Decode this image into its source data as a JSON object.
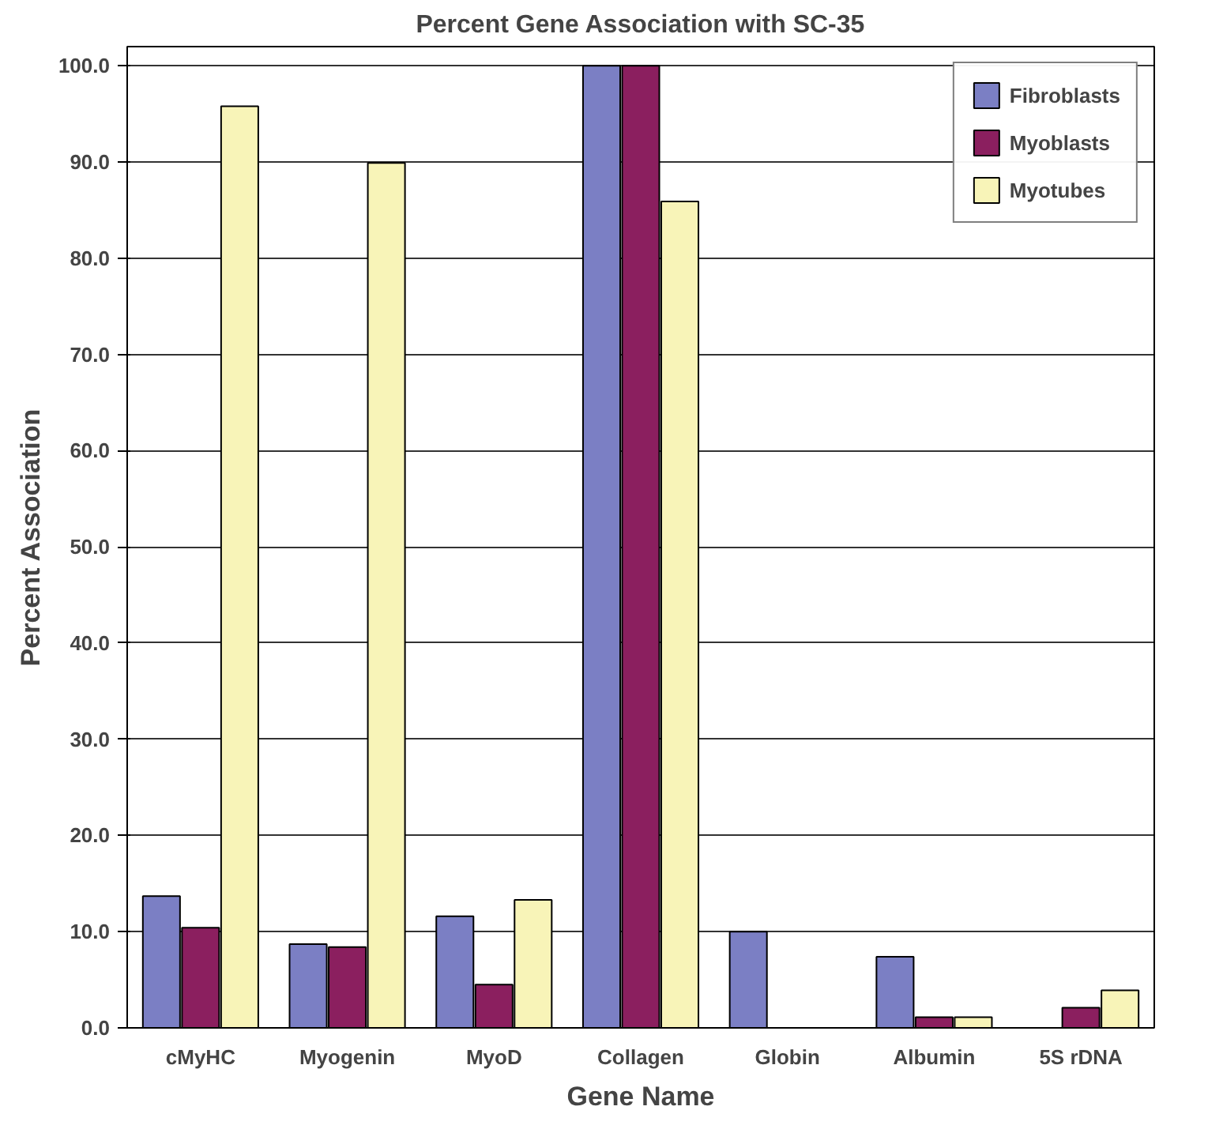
{
  "chart_data": {
    "type": "bar",
    "title": "Percent Gene Association with SC-35",
    "xlabel": "Gene Name",
    "ylabel": "Percent Association",
    "categories": [
      "cMyHC",
      "Myogenin",
      "MyoD",
      "Collagen",
      "Globin",
      "Albumin",
      "5S rDNA"
    ],
    "series": [
      {
        "name": "Fibroblasts",
        "color": "#7b7fc4",
        "values": [
          13.7,
          8.7,
          11.6,
          100,
          10.0,
          7.4,
          null
        ]
      },
      {
        "name": "Myoblasts",
        "color": "#8b1f5f",
        "values": [
          10.4,
          8.4,
          4.5,
          100,
          null,
          1.1,
          2.1
        ]
      },
      {
        "name": "Myotubes",
        "color": "#f8f4b8",
        "values": [
          95.8,
          89.9,
          13.3,
          85.9,
          null,
          1.1,
          3.9
        ]
      }
    ],
    "ylim": [
      0,
      102
    ],
    "yticks": [
      {
        "value": 0,
        "label": "0.0"
      },
      {
        "value": 10,
        "label": "10.0"
      },
      {
        "value": 20,
        "label": "20.0"
      },
      {
        "value": 30,
        "label": "30.0"
      },
      {
        "value": 40,
        "label": "40.0"
      },
      {
        "value": 50,
        "label": "50.0"
      },
      {
        "value": 60,
        "label": "60.0"
      },
      {
        "value": 70,
        "label": "70.0"
      },
      {
        "value": 80,
        "label": "80.0"
      },
      {
        "value": 90,
        "label": "90.0"
      },
      {
        "value": 100,
        "label": "100.0"
      }
    ],
    "grid": "y",
    "legend": "top right"
  }
}
